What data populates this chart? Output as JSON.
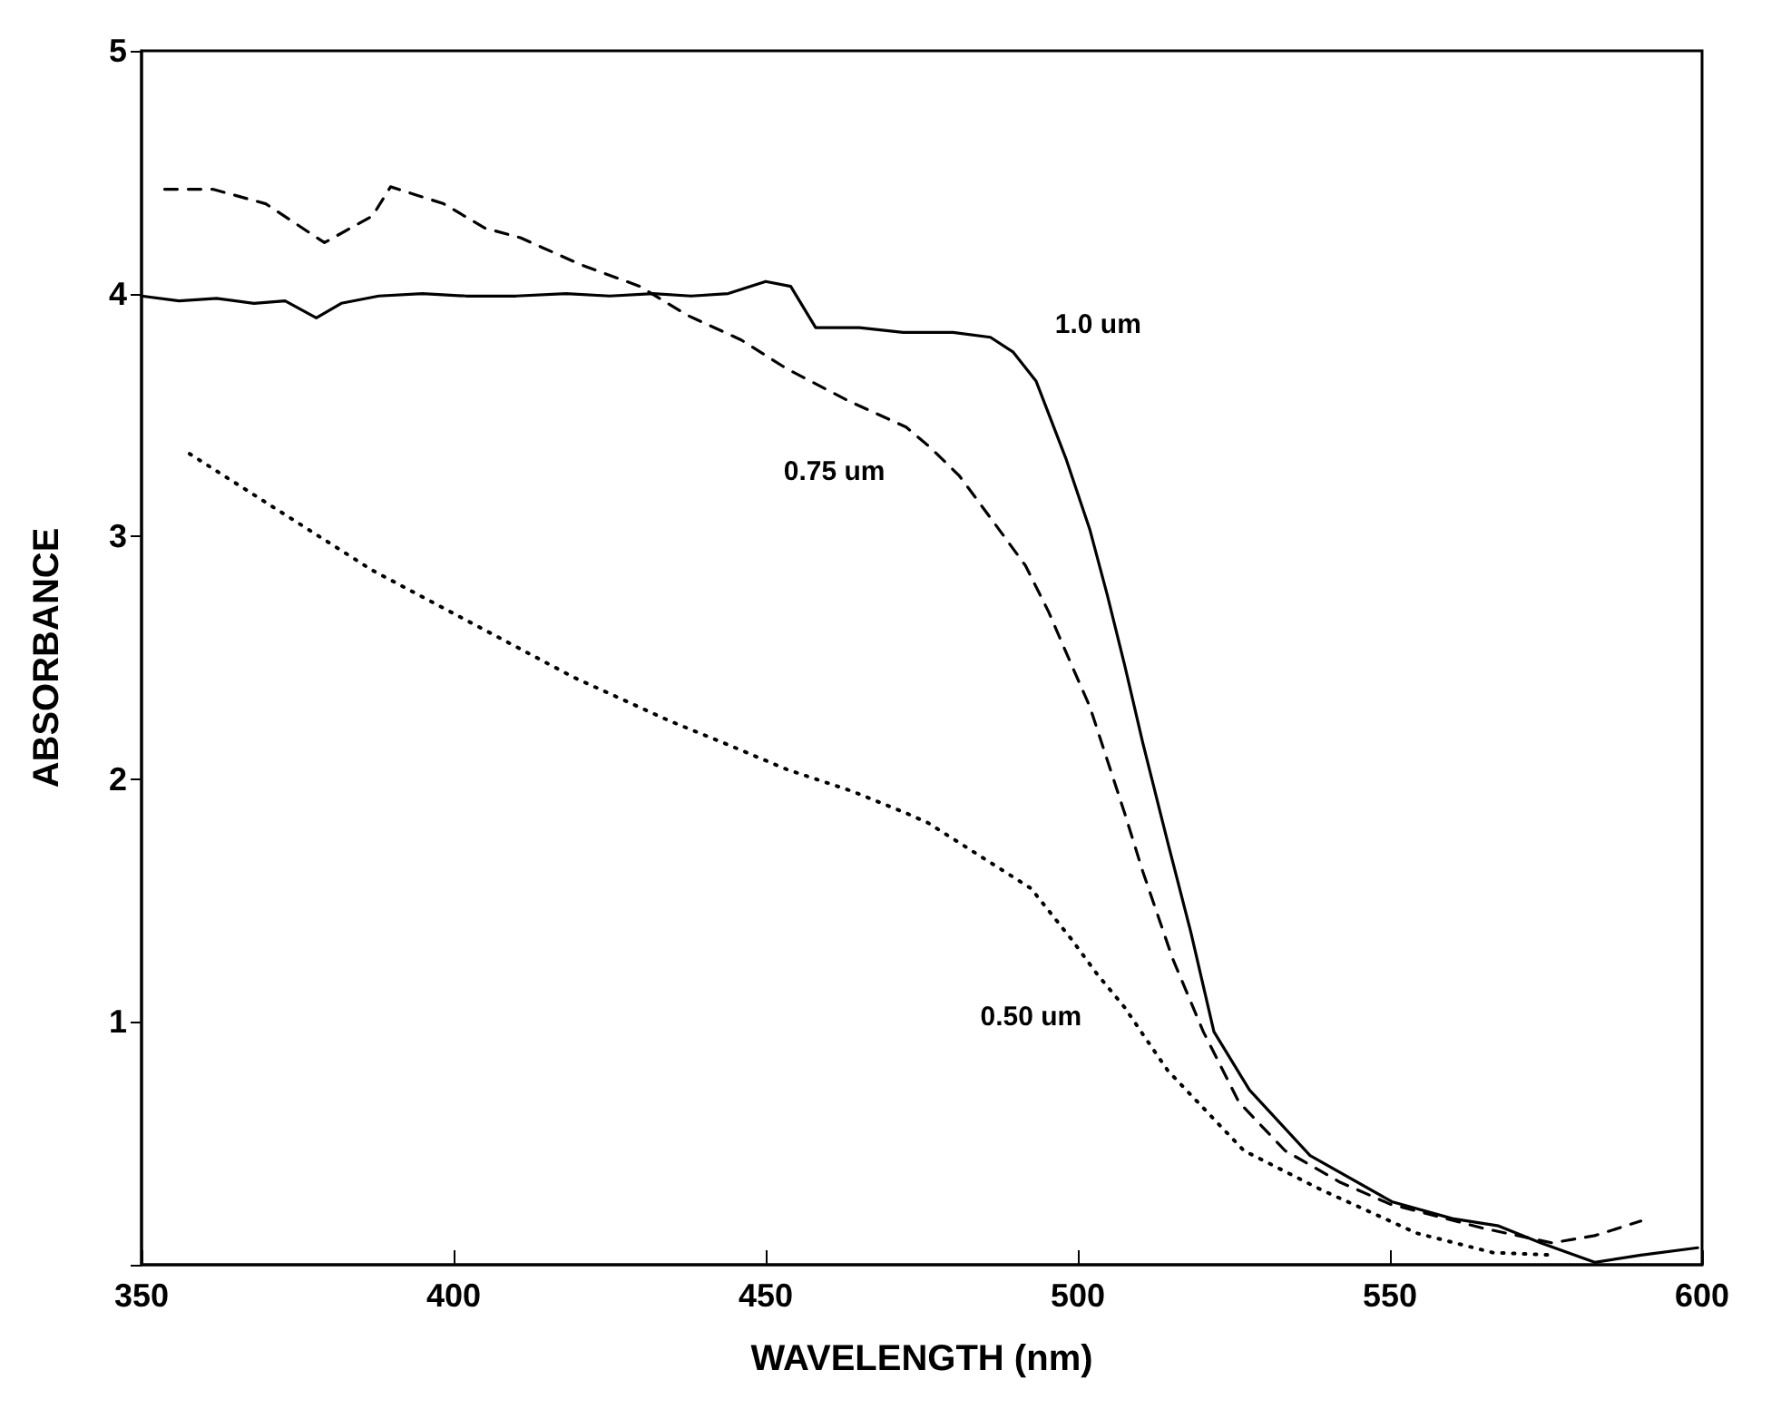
{
  "chart_data": {
    "type": "line",
    "xlabel": "WAVELENGTH (nm)",
    "ylabel": "ABSORBANCE",
    "xlim": [
      350,
      600
    ],
    "ylim": [
      0,
      5
    ],
    "xticks": [
      350,
      400,
      450,
      500,
      550,
      600
    ],
    "yticks": [
      {
        "value": 0,
        "label": null
      },
      1,
      2,
      3,
      4,
      5
    ],
    "grid": false,
    "legend": false,
    "marker": "none",
    "series": [
      {
        "name": "1.0 um",
        "color": "#000000",
        "line_style": "solid",
        "x": [
          350,
          356,
          362,
          368,
          373,
          378,
          382,
          388,
          395,
          402,
          410,
          418,
          425,
          432,
          438,
          444,
          450,
          454,
          458,
          465,
          472,
          480,
          486,
          489.6,
          493.3,
          498.1,
          501.9,
          504.7,
          507.5,
          510.4,
          514.4,
          518.1,
          521.8,
          527.5,
          537.2,
          550.3,
          560,
          567.4,
          574.2,
          582.8,
          590.2,
          599.3
        ],
        "values": [
          3.99,
          3.97,
          3.98,
          3.96,
          3.97,
          3.9,
          3.96,
          3.99,
          4.0,
          3.99,
          3.99,
          4.0,
          3.99,
          4.0,
          3.99,
          4.0,
          4.05,
          4.03,
          3.86,
          3.86,
          3.84,
          3.84,
          3.82,
          3.76,
          3.64,
          3.32,
          3.03,
          2.76,
          2.47,
          2.15,
          1.74,
          1.37,
          0.96,
          0.72,
          0.45,
          0.26,
          0.19,
          0.16,
          0.09,
          0.01,
          0.04,
          0.07
        ]
      },
      {
        "name": "0.75 um",
        "color": "#000000",
        "line_style": "dashed",
        "x": [
          353.7,
          361.4,
          369.9,
          379.3,
          387,
          389.9,
          398.4,
          405,
          410.7,
          420.3,
          429.8,
          437.5,
          446,
          453.4,
          463.1,
          472.5,
          476.2,
          481,
          485.9,
          491.6,
          495.3,
          499,
          501.9,
          504.7,
          507.5,
          510.4,
          515.2,
          520.1,
          525.8,
          533.2,
          542,
          550,
          565,
          576,
          582.8,
          590.2
        ],
        "values": [
          4.43,
          4.43,
          4.37,
          4.21,
          4.32,
          4.44,
          4.37,
          4.27,
          4.23,
          4.12,
          4.03,
          3.91,
          3.81,
          3.69,
          3.56,
          3.45,
          3.37,
          3.25,
          3.08,
          2.88,
          2.69,
          2.47,
          2.3,
          2.08,
          1.86,
          1.62,
          1.26,
          0.96,
          0.67,
          0.47,
          0.34,
          0.25,
          0.15,
          0.09,
          0.12,
          0.18
        ]
      },
      {
        "name": "0.50 um",
        "color": "#000000",
        "line_style": "dotted",
        "x": [
          357.7,
          387,
          419.2,
          434.6,
          443.2,
          453.4,
          463.9,
          472.5,
          476,
          492.5,
          499,
          503,
          507.5,
          510.4,
          514.4,
          526.6,
          538.9,
          554.3,
          566.5,
          576
        ],
        "values": [
          3.34,
          2.86,
          2.42,
          2.24,
          2.15,
          2.04,
          1.95,
          1.86,
          1.82,
          1.55,
          1.34,
          1.2,
          1.06,
          0.95,
          0.8,
          0.47,
          0.31,
          0.13,
          0.05,
          0.04
        ]
      }
    ]
  }
}
